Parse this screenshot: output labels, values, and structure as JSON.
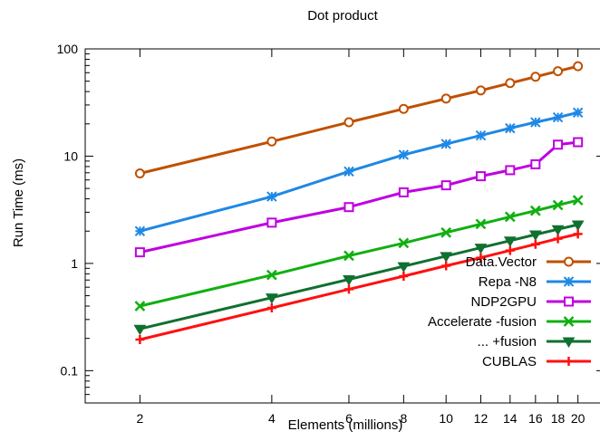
{
  "chart_data": {
    "type": "line",
    "title": "Dot product",
    "xlabel": "Elements (millions)",
    "ylabel": "Run Time (ms)",
    "x_scale": "log",
    "y_scale": "log",
    "xlim": [
      1.5,
      23
    ],
    "ylim": [
      0.05,
      100
    ],
    "x_ticks": [
      2,
      4,
      6,
      8,
      10,
      12,
      14,
      16,
      18,
      20
    ],
    "x_tick_labels": [
      "2",
      "4",
      "6",
      "8",
      "10",
      "12",
      "14",
      "16",
      "18",
      "20"
    ],
    "y_ticks": [
      0.1,
      1,
      10,
      100
    ],
    "y_tick_labels": [
      "0.1",
      "1",
      "10",
      "100"
    ],
    "grid": false,
    "legend_position": "bottom-right",
    "x": [
      2,
      4,
      6,
      8,
      10,
      12,
      14,
      16,
      18,
      20
    ],
    "series": [
      {
        "name": "Data.Vector",
        "color": "#c05000",
        "marker": "circle",
        "values": [
          6.9,
          13.7,
          20.7,
          27.6,
          34.4,
          41,
          48,
          55,
          62,
          69
        ]
      },
      {
        "name": "Repa -N8",
        "color": "#1e88e5",
        "marker": "star",
        "values": [
          2.0,
          4.2,
          7.2,
          10.3,
          13.0,
          15.6,
          18.2,
          20.7,
          23.0,
          25.5
        ]
      },
      {
        "name": "NDP2GPU",
        "color": "#c000e0",
        "marker": "square",
        "values": [
          1.27,
          2.4,
          3.35,
          4.6,
          5.35,
          6.5,
          7.4,
          8.4,
          12.8,
          13.5
        ]
      },
      {
        "name": "Accelerate -fusion",
        "color": "#10b010",
        "marker": "x",
        "values": [
          0.4,
          0.78,
          1.18,
          1.55,
          1.94,
          2.33,
          2.72,
          3.1,
          3.5,
          3.88
        ]
      },
      {
        "name": "... +fusion",
        "color": "#107030",
        "marker": "triangle-down",
        "values": [
          0.245,
          0.48,
          0.71,
          0.94,
          1.17,
          1.4,
          1.63,
          1.86,
          2.08,
          2.3
        ]
      },
      {
        "name": "CUBLAS",
        "color": "#ff1010",
        "marker": "plus",
        "values": [
          0.195,
          0.385,
          0.575,
          0.76,
          0.95,
          1.13,
          1.32,
          1.51,
          1.7,
          1.88
        ]
      }
    ]
  }
}
